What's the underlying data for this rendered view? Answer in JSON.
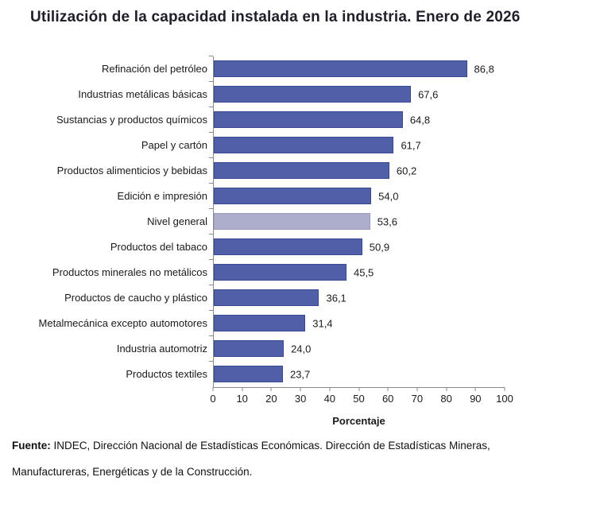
{
  "page": {
    "title": "Utilización de la capacidad instalada en la industria. Enero de 2026"
  },
  "chart_data": {
    "type": "bar",
    "orientation": "horizontal",
    "title": "Utilización de la capacidad instalada en la industria. Enero de 2026",
    "xlabel": "Porcentaje",
    "xlim": [
      0,
      100
    ],
    "xticks": [
      0,
      10,
      20,
      30,
      40,
      50,
      60,
      70,
      80,
      90,
      100
    ],
    "grid": false,
    "legend": null,
    "categories": [
      "Refinación del petróleo",
      "Industrias metálicas básicas",
      "Sustancias y productos químicos",
      "Papel y cartón",
      "Productos alimenticios y bebidas",
      "Edición e impresión",
      "Nivel general",
      "Productos del tabaco",
      "Productos minerales no metálicos",
      "Productos de caucho y plástico",
      "Metalmecánica excepto automotores",
      "Industria automotriz",
      "Productos textiles"
    ],
    "values": [
      86.8,
      67.6,
      64.8,
      61.7,
      60.2,
      54.0,
      53.6,
      50.9,
      45.5,
      36.1,
      31.4,
      24.0,
      23.7
    ],
    "value_labels": [
      "86,8",
      "67,6",
      "64,8",
      "61,7",
      "60,2",
      "54,0",
      "53,6",
      "50,9",
      "45,5",
      "36,1",
      "31,4",
      "24,0",
      "23,7"
    ],
    "highlight_category": "Nivel general",
    "highlight_index": 6,
    "colors": {
      "bar": "#5060a8",
      "bar_border": "#3c4a92",
      "highlight_bar": "#adaecc",
      "highlight_border": "#9c9dbe",
      "axis": "#8a8a8a",
      "text": "#1a1a1a",
      "title_text": "#20202a"
    }
  },
  "footer": {
    "source_label": "Fuente:",
    "source_line1": " INDEC, Dirección Nacional de Estadísticas Económicas. Dirección de Estadísticas Mineras,",
    "source_line2": "Manufactureras, Energéticas y de la Construcción."
  }
}
